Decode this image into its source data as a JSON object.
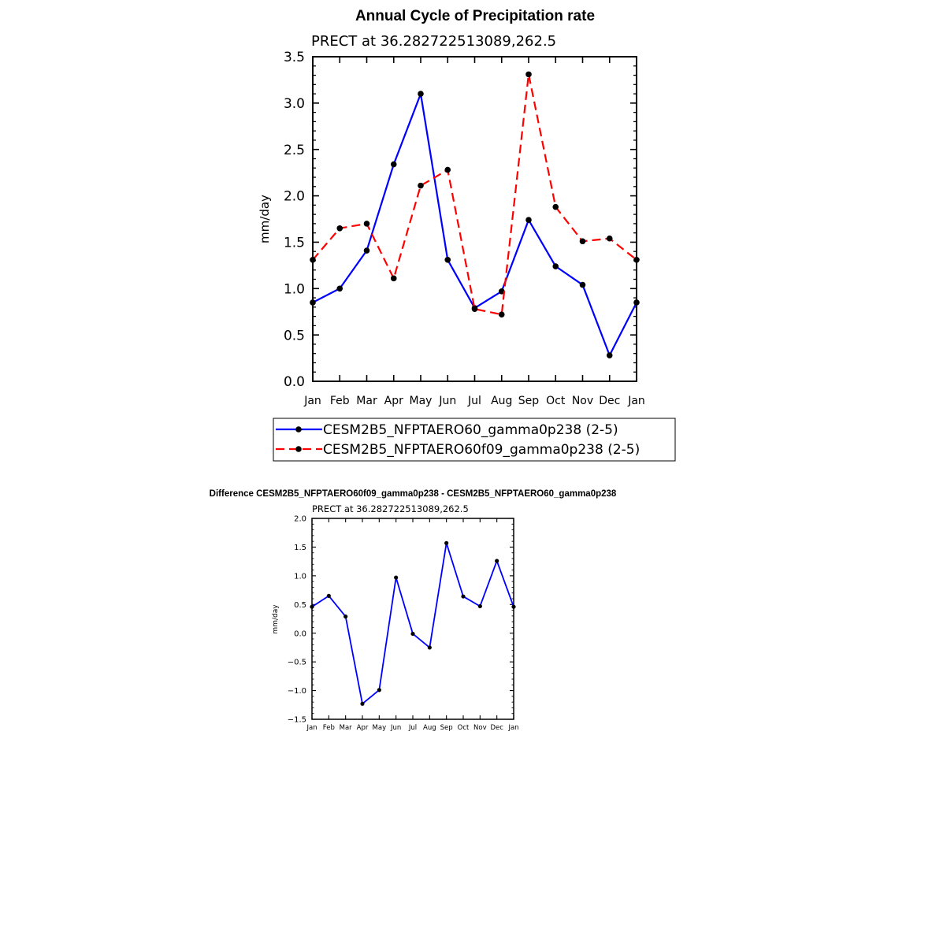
{
  "chart_data": [
    {
      "type": "line",
      "title": "Annual Cycle of Precipitation rate",
      "subtitle": "PRECT at 36.282722513089,262.5",
      "ylabel": "mm/day",
      "ylim": [
        0,
        3.5
      ],
      "yticks": [
        "0.0",
        "0.5",
        "1.0",
        "1.5",
        "2.0",
        "2.5",
        "3.0",
        "3.5"
      ],
      "categories": [
        "Jan",
        "Feb",
        "Mar",
        "Apr",
        "May",
        "Jun",
        "Jul",
        "Aug",
        "Sep",
        "Oct",
        "Nov",
        "Dec",
        "Jan"
      ],
      "series": [
        {
          "name": "CESM2B5_NFPTAERO60_gamma0p238 (2-5)",
          "color": "#0000ff",
          "dash": "solid",
          "values": [
            0.85,
            1.0,
            1.41,
            2.34,
            3.1,
            1.31,
            0.79,
            0.97,
            1.74,
            1.24,
            1.04,
            0.28,
            0.85
          ]
        },
        {
          "name": "CESM2B5_NFPTAERO60f09_gamma0p238 (2-5)",
          "color": "#ff0000",
          "dash": "dashed",
          "values": [
            1.31,
            1.65,
            1.7,
            1.11,
            2.11,
            2.28,
            0.78,
            0.72,
            3.31,
            1.88,
            1.51,
            1.54,
            1.31
          ]
        }
      ],
      "legend": "bottom",
      "grid": false
    },
    {
      "type": "line",
      "title": "Difference CESM2B5_NFPTAERO60f09_gamma0p238 - CESM2B5_NFPTAERO60_gamma0p238",
      "subtitle": "PRECT at 36.282722513089,262.5",
      "ylabel": "mm/day",
      "ylim": [
        -1.5,
        2.0
      ],
      "yticks": [
        "−1.5",
        "−1.0",
        "−0.5",
        "0.0",
        "0.5",
        "1.0",
        "1.5",
        "2.0"
      ],
      "categories": [
        "Jan",
        "Feb",
        "Mar",
        "Apr",
        "May",
        "Jun",
        "Jul",
        "Aug",
        "Sep",
        "Oct",
        "Nov",
        "Dec",
        "Jan"
      ],
      "series": [
        {
          "color": "#0000ff",
          "dash": "solid",
          "values": [
            0.46,
            0.65,
            0.29,
            -1.23,
            -0.99,
            0.97,
            -0.01,
            -0.25,
            1.57,
            0.64,
            0.47,
            1.26,
            0.46
          ]
        }
      ],
      "grid": false
    }
  ]
}
